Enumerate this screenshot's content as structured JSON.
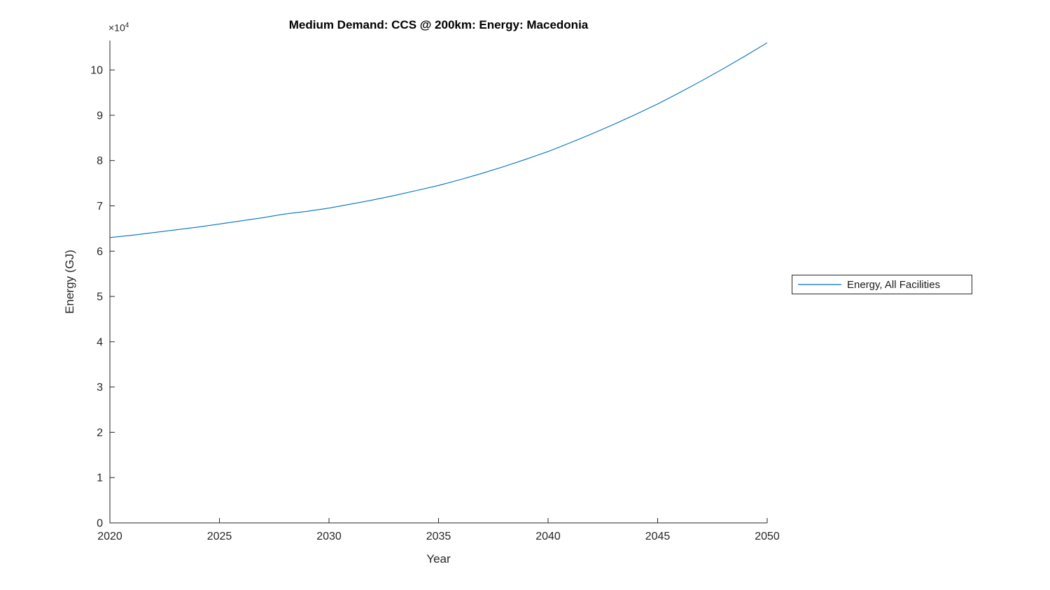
{
  "chart_data": {
    "type": "line",
    "title": "Medium Demand: CCS @ 200km: Energy: Macedonia",
    "xlabel": "Year",
    "ylabel": "Energy (GJ)",
    "y_multiplier": {
      "base": "×10",
      "exponent": "4"
    },
    "axis_color": "#262626",
    "grid": false,
    "legend_position": "right-outside",
    "xlim": [
      2020,
      2050
    ],
    "ylim_1e4": [
      0,
      10.65
    ],
    "x_ticks": [
      2020,
      2025,
      2030,
      2035,
      2040,
      2045,
      2050
    ],
    "y_ticks": [
      0,
      1,
      2,
      3,
      4,
      5,
      6,
      7,
      8,
      9,
      10
    ],
    "x": [
      2020,
      2021,
      2022,
      2023,
      2024,
      2025,
      2026,
      2027,
      2028,
      2029,
      2030,
      2031,
      2032,
      2033,
      2034,
      2035,
      2036,
      2037,
      2038,
      2039,
      2040,
      2041,
      2042,
      2043,
      2044,
      2045,
      2046,
      2047,
      2048,
      2049,
      2050
    ],
    "series": [
      {
        "name": "Energy, All Facilities",
        "color": "#0072BD",
        "values_1e4": [
          6.3,
          6.35,
          6.41,
          6.47,
          6.53,
          6.6,
          6.67,
          6.74,
          6.82,
          6.88,
          6.95,
          7.04,
          7.13,
          7.23,
          7.34,
          7.45,
          7.58,
          7.72,
          7.87,
          8.03,
          8.2,
          8.39,
          8.59,
          8.8,
          9.02,
          9.25,
          9.5,
          9.76,
          10.03,
          10.31,
          10.6
        ]
      }
    ]
  }
}
